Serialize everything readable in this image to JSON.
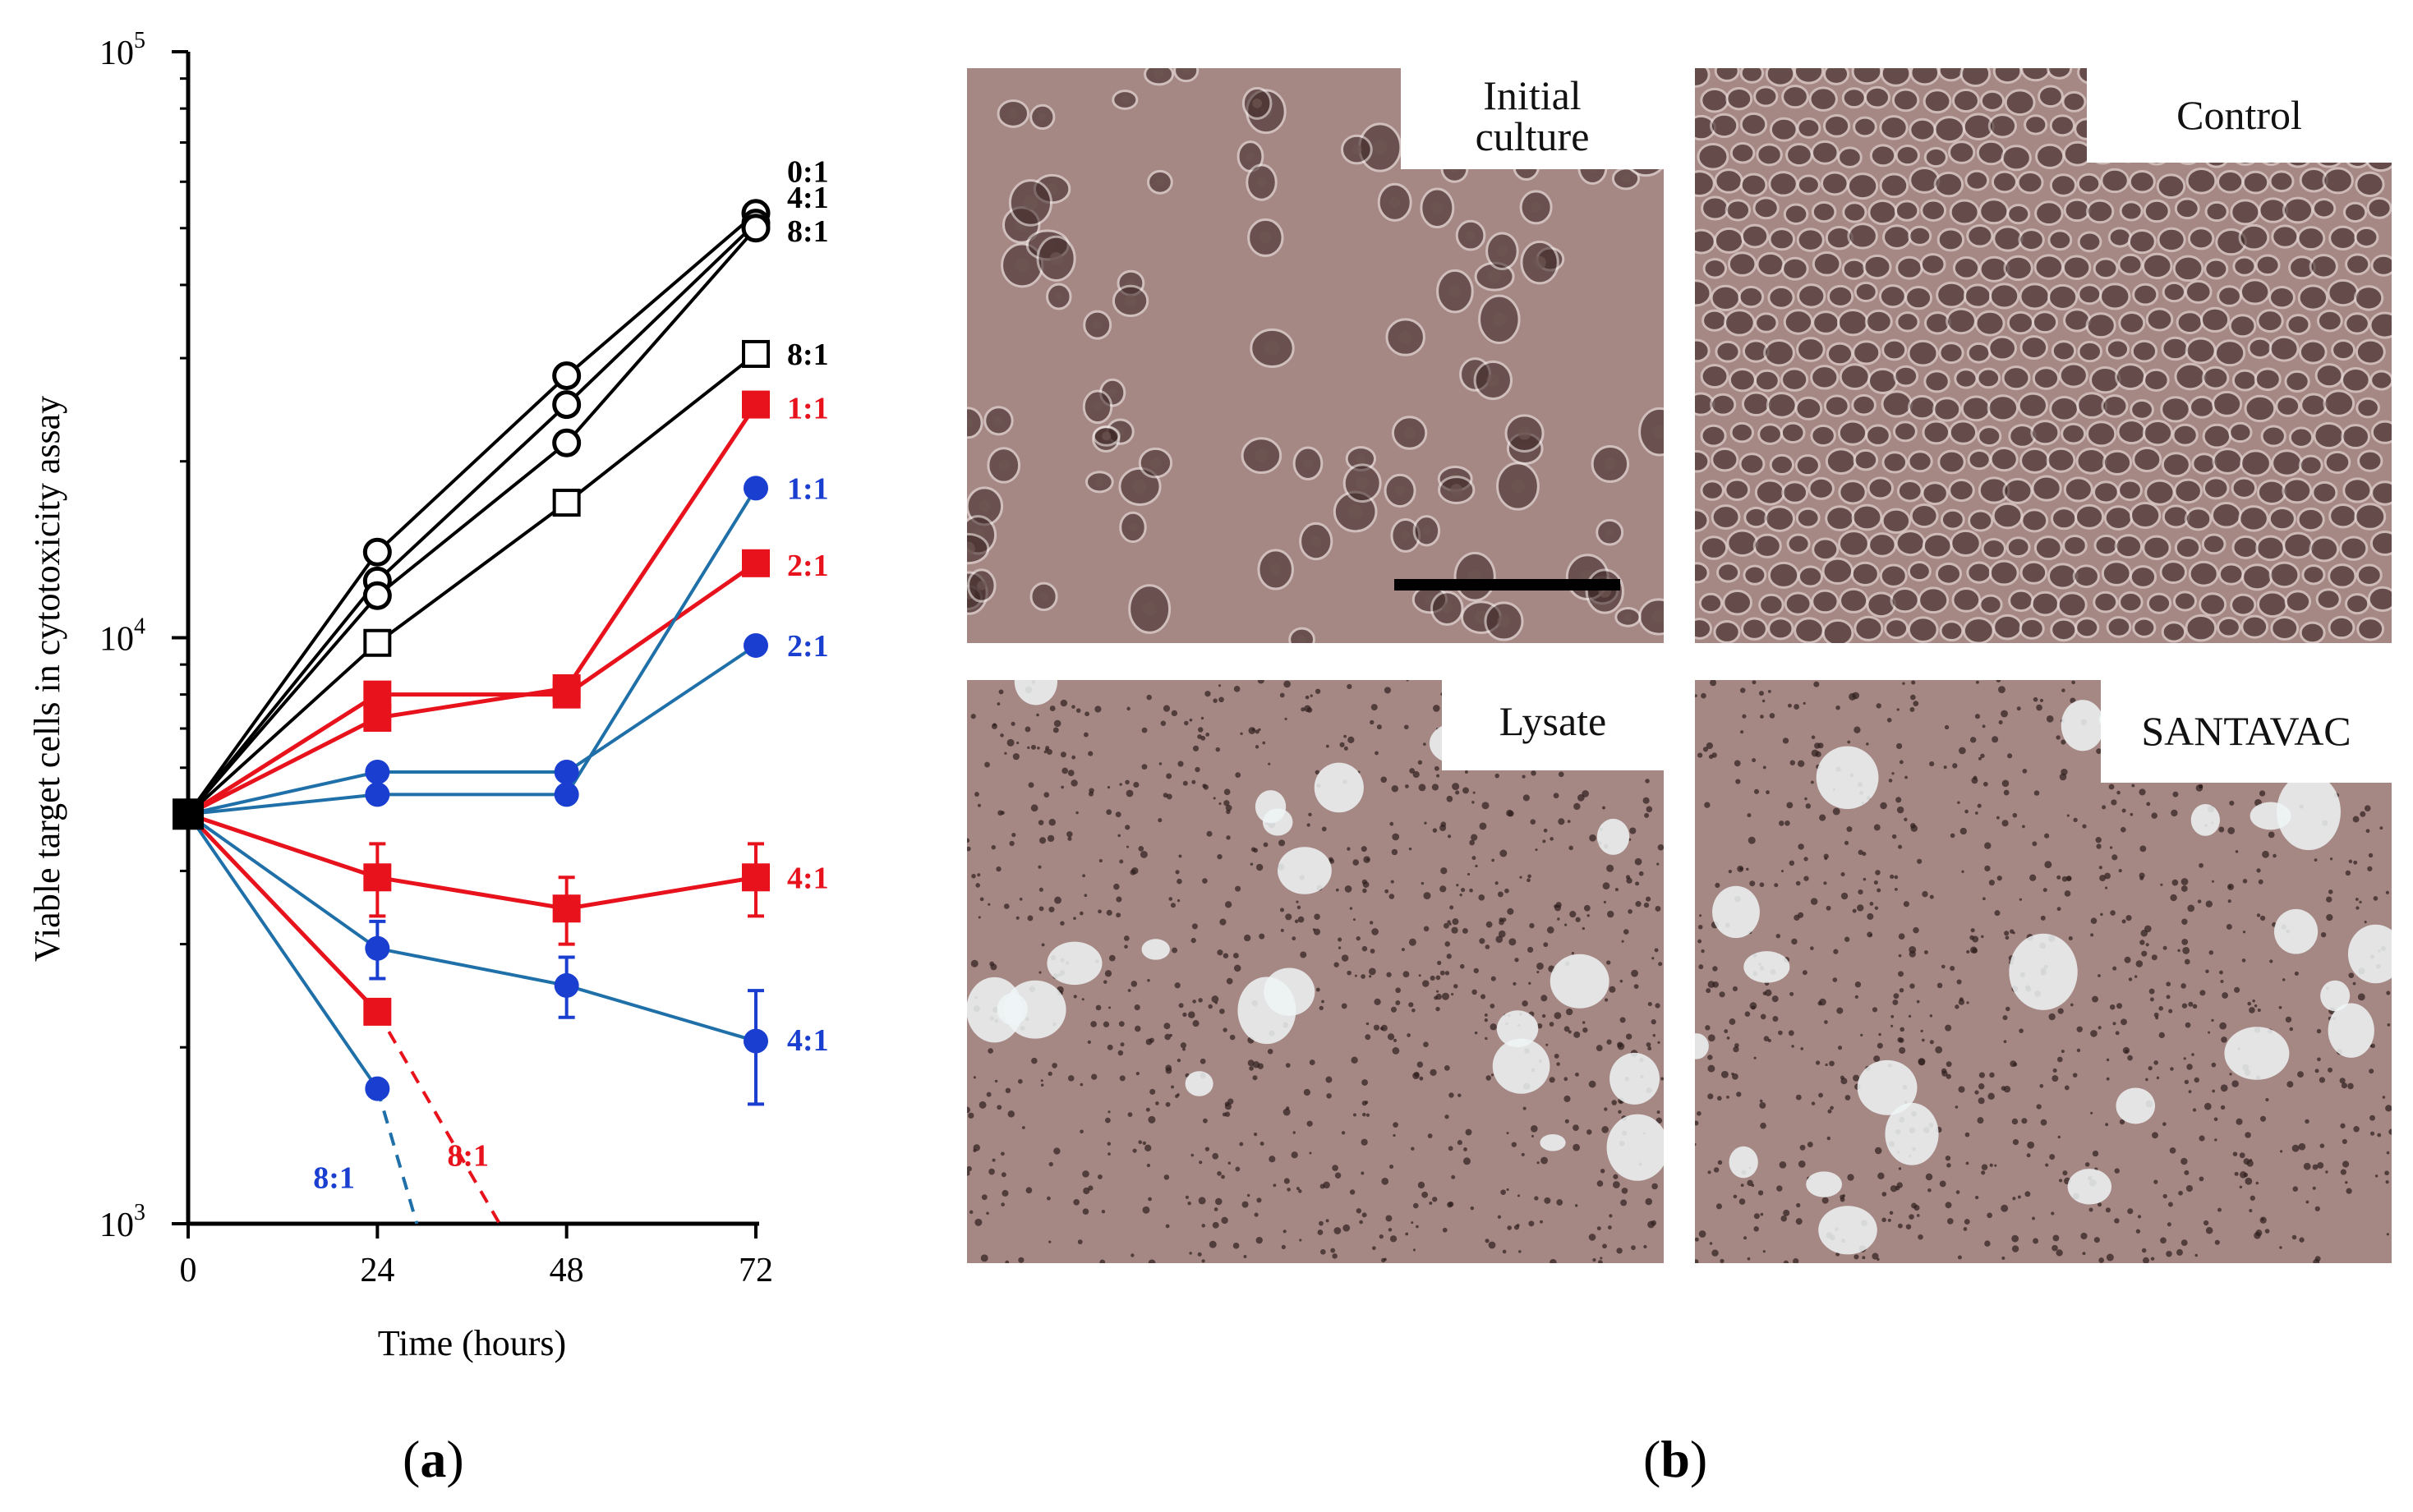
{
  "chart_data": {
    "type": "line",
    "xlabel": "Time (hours)",
    "ylabel": "Viable target cells in cytotoxicity assay",
    "x_ticks": [
      "0",
      "24",
      "48",
      "72"
    ],
    "y_scale": "log",
    "y_ticks": [
      {
        "value": 1000,
        "base": "10",
        "exp": "3"
      },
      {
        "value": 10000,
        "base": "10",
        "exp": "4"
      },
      {
        "value": 100000,
        "base": "10",
        "exp": "5"
      }
    ],
    "xlim": [
      0,
      72
    ],
    "ylim": [
      1000,
      100000
    ],
    "series": [
      {
        "label": "0:1",
        "color": "#000000",
        "marker": "open-circle",
        "x": [
          0,
          24,
          48,
          72
        ],
        "y": [
          5000,
          14000,
          28000,
          53000
        ]
      },
      {
        "label": "4:1",
        "color": "#000000",
        "marker": "open-circle",
        "x": [
          0,
          24,
          48,
          72
        ],
        "y": [
          5000,
          12500,
          25000,
          51000
        ]
      },
      {
        "label": "8:1",
        "color": "#000000",
        "marker": "open-circle",
        "x": [
          0,
          24,
          48,
          72
        ],
        "y": [
          5000,
          11800,
          21500,
          50000
        ]
      },
      {
        "label": "8:1",
        "color": "#000000",
        "marker": "open-square",
        "x": [
          0,
          24,
          48,
          72
        ],
        "y": [
          5000,
          9800,
          17000,
          30500
        ]
      },
      {
        "label": "1:1",
        "color": "#e8121d",
        "marker": "filled-square",
        "x": [
          0,
          24,
          48,
          72
        ],
        "y": [
          5000,
          7300,
          8200,
          25000
        ]
      },
      {
        "label": "2:1",
        "color": "#e8121d",
        "marker": "filled-square",
        "x": [
          0,
          24,
          48,
          72
        ],
        "y": [
          5000,
          8000,
          8000,
          13400
        ]
      },
      {
        "label": "4:1",
        "color": "#e8121d",
        "marker": "filled-square",
        "x": [
          0,
          24,
          48,
          72
        ],
        "y": [
          5000,
          3900,
          3450,
          3900
        ],
        "err": [
          0,
          550,
          450,
          550
        ]
      },
      {
        "label": "8:1",
        "color": "#e8121d",
        "marker": "filled-square",
        "x": [
          0,
          24
        ],
        "y": [
          5000,
          2300
        ],
        "extrapolation": {
          "x": [
            24,
            39.5
          ],
          "y": [
            2300,
            1000
          ]
        }
      },
      {
        "label": "1:1",
        "color": "#1a3fd0",
        "marker": "filled-circle",
        "x": [
          0,
          24,
          48,
          72
        ],
        "y": [
          5000,
          5400,
          5400,
          18000
        ],
        "line_color": "#1f6fa8"
      },
      {
        "label": "2:1",
        "color": "#1a3fd0",
        "marker": "filled-circle",
        "x": [
          0,
          24,
          48,
          72
        ],
        "y": [
          5000,
          5900,
          5900,
          9700
        ],
        "line_color": "#1f6fa8"
      },
      {
        "label": "4:1",
        "color": "#1a3fd0",
        "marker": "filled-circle",
        "x": [
          0,
          24,
          48,
          72
        ],
        "y": [
          5000,
          2950,
          2550,
          2050
        ],
        "err": [
          0,
          330,
          300,
          450
        ],
        "line_color": "#1f6fa8"
      },
      {
        "label": "8:1",
        "color": "#1a3fd0",
        "marker": "filled-circle",
        "x": [
          0,
          24
        ],
        "y": [
          5000,
          1700
        ],
        "extrapolation": {
          "x": [
            24,
            29
          ],
          "y": [
            1700,
            1000
          ]
        },
        "line_color": "#1f6fa8"
      }
    ],
    "end_labels": [
      {
        "text": "0:1",
        "color": "#000000",
        "y": 62500
      },
      {
        "text": "4:1",
        "color": "#000000",
        "y": 56500
      },
      {
        "text": "8:1",
        "color": "#000000",
        "y": 49500
      },
      {
        "text": "8:1",
        "color": "#000000",
        "y": 30500
      },
      {
        "text": "1:1",
        "color": "#e8121d",
        "y": 24700
      },
      {
        "text": "1:1",
        "color": "#1a3fd0",
        "y": 18000
      },
      {
        "text": "2:1",
        "color": "#e8121d",
        "y": 13300
      },
      {
        "text": "2:1",
        "color": "#1a3fd0",
        "y": 9700
      },
      {
        "text": "4:1",
        "color": "#e8121d",
        "y": 3900
      },
      {
        "text": "4:1",
        "color": "#1a3fd0",
        "y": 2060
      }
    ],
    "inline_labels": [
      {
        "text": "8:1",
        "color": "#1a3fd0",
        "x": 18.5,
        "y": 1150
      },
      {
        "text": "8:1",
        "color": "#e8121d",
        "x": 35.5,
        "y": 1255
      }
    ]
  },
  "panels": {
    "a_label": "a",
    "b_label": "b",
    "micrographs": [
      {
        "label_lines": [
          "Initial",
          "culture"
        ],
        "kind": "sparse"
      },
      {
        "label_lines": [
          "Control"
        ],
        "kind": "confluent"
      },
      {
        "label_lines": [
          "Lysate"
        ],
        "kind": "lysed"
      },
      {
        "label_lines": [
          "SANTAVAC"
        ],
        "kind": "lysed"
      }
    ],
    "colors": {
      "micro_bg": "#a58784",
      "micro_light": "#c9b3b0",
      "micro_dark": "#3b2624"
    }
  }
}
